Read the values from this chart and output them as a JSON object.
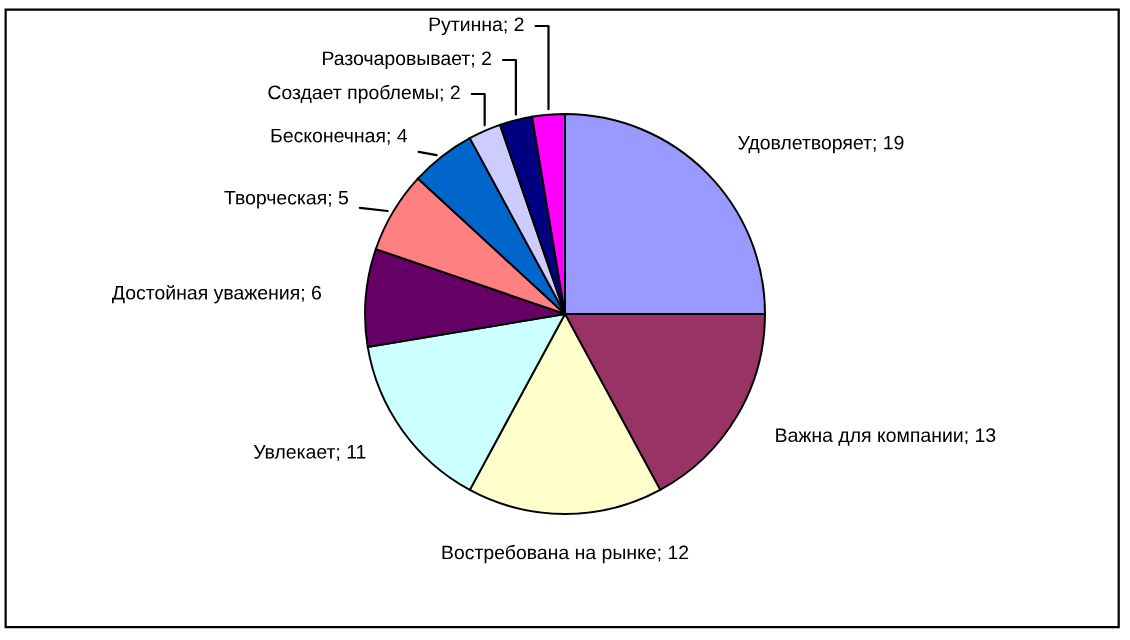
{
  "chart_data": {
    "type": "pie",
    "categories": [
      "Удовлетворяет; 19",
      "Важна для компании; 13",
      "Востребована на рынке; 12",
      "Увлекает; 11",
      "Достойная уважения; 6",
      "Творческая; 5",
      "Бесконечная; 4",
      "Создает проблемы; 2",
      "Разочаровывает; 2",
      "Рутинна; 2"
    ],
    "values": [
      19,
      13,
      12,
      11,
      6,
      5,
      4,
      2,
      2,
      2
    ],
    "colors": [
      "#9999ff",
      "#993366",
      "#ffffcc",
      "#ccffff",
      "#660066",
      "#ff8080",
      "#0066cc",
      "#ccccff",
      "#000080",
      "#ff00ff"
    ],
    "legend": false
  }
}
